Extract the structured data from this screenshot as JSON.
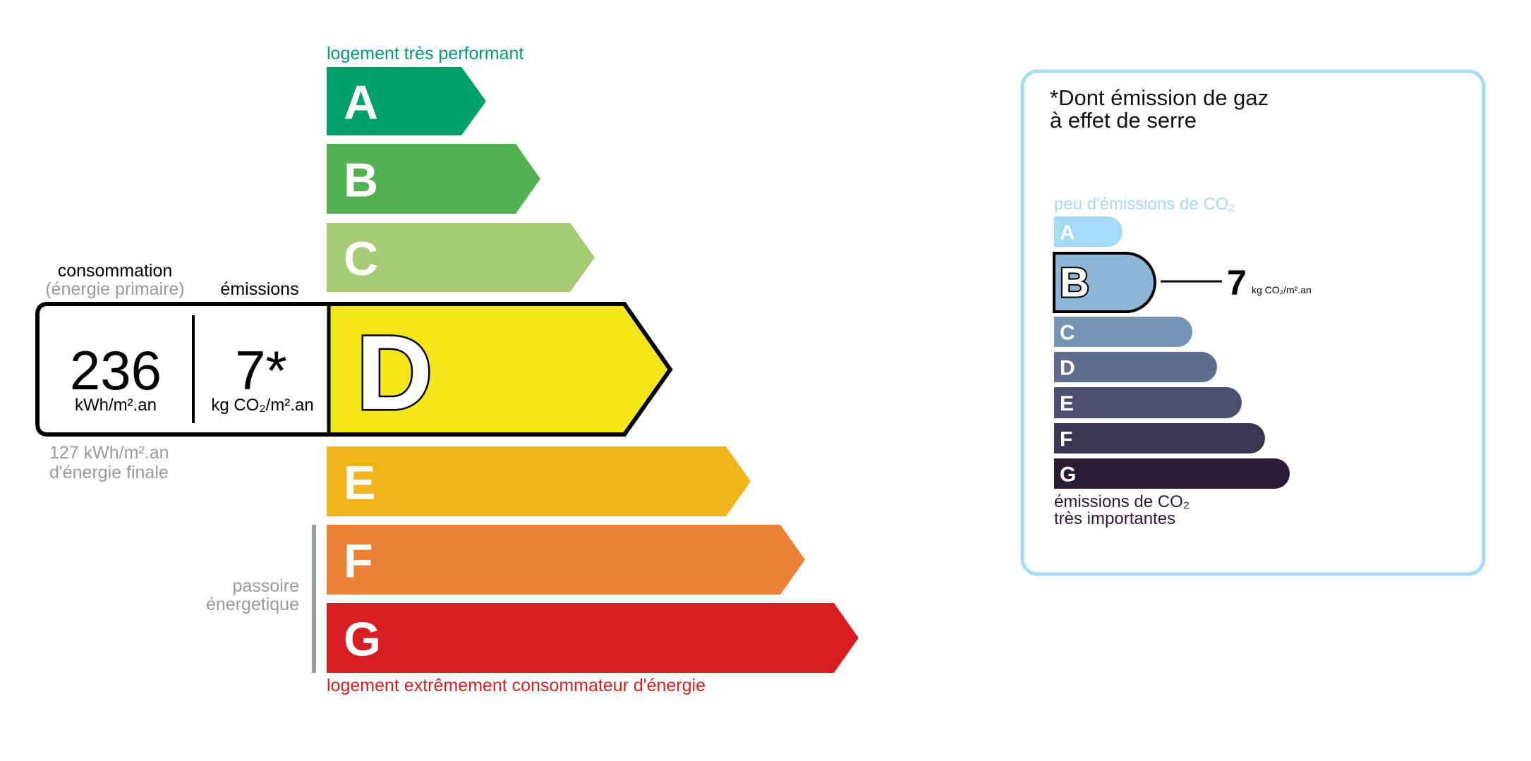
{
  "energy": {
    "top_label": "logement très performant",
    "bottom_label": "logement extrêmement consommateur d'énergie",
    "passoire_label": [
      "passoire",
      "énergetique"
    ],
    "consumption_heading": "consommation",
    "consumption_subheading": "(énergie primaire)",
    "emissions_heading": "émissions",
    "consumption_value": "236",
    "consumption_unit": "kWh/m².an",
    "emissions_value": "7*",
    "emissions_unit": "kg CO₂/m².an",
    "final_energy": "127 kWh/m².an",
    "final_energy_label": "d'énergie finale",
    "current_class": "D",
    "classes": [
      {
        "letter": "A",
        "color": "#00a06b"
      },
      {
        "letter": "B",
        "color": "#52b153"
      },
      {
        "letter": "C",
        "color": "#a5cc74"
      },
      {
        "letter": "D",
        "color": "#f2e61b"
      },
      {
        "letter": "E",
        "color": "#f0b41a"
      },
      {
        "letter": "F",
        "color": "#eb8235"
      },
      {
        "letter": "G",
        "color": "#d81e20"
      }
    ]
  },
  "ghg": {
    "title_line1": "*Dont émission de gaz",
    "title_line2": "à effet de serre",
    "top_label": "peu d'émissions de CO₂",
    "bottom_label_line1": "émissions de CO₂",
    "bottom_label_line2": "très importantes",
    "value": "7",
    "unit": "kg CO₂/m².an",
    "current_class": "B",
    "border_color": "#a6dbf5",
    "classes": [
      {
        "letter": "A",
        "color": "#a4daf6"
      },
      {
        "letter": "B",
        "color": "#8db5d5"
      },
      {
        "letter": "C",
        "color": "#7593b4"
      },
      {
        "letter": "D",
        "color": "#5f6d8e"
      },
      {
        "letter": "E",
        "color": "#4c4f6e"
      },
      {
        "letter": "F",
        "color": "#383651"
      },
      {
        "letter": "G",
        "color": "#2a1c34"
      }
    ]
  }
}
